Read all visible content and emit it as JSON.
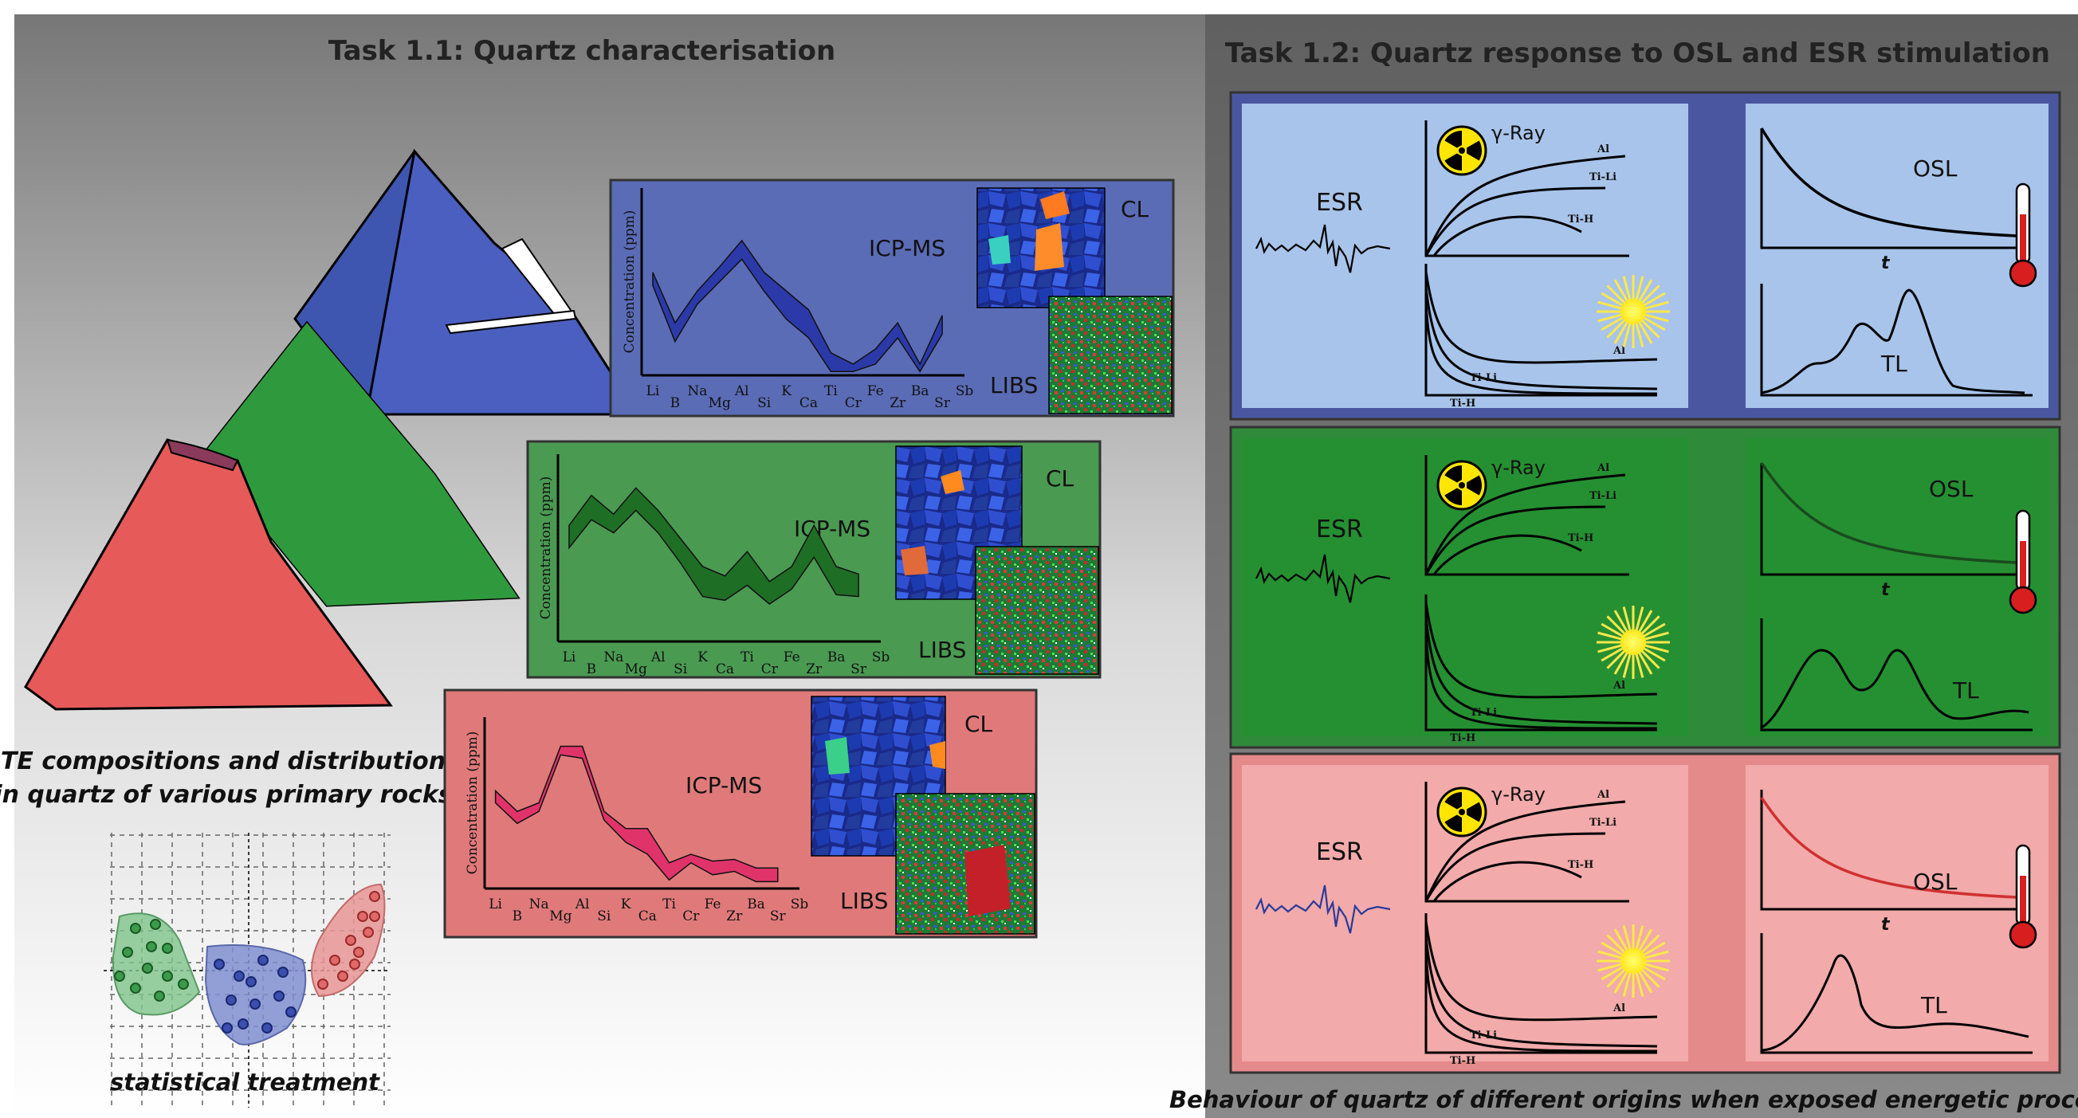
{
  "left": {
    "heading": "Task 1.1: Quartz characterisation",
    "caption_line1": "TE compositions and distribution",
    "caption_line2": "in quartz of various primary rocks",
    "stats_caption": "statistical treatment",
    "panels": [
      {
        "id": "blue",
        "y_axis": "Concentration (ppm)",
        "method": "ICP-MS",
        "cl": "CL",
        "libs": "LIBS",
        "color": "#5b6cb6",
        "band": "#2b3aa8"
      },
      {
        "id": "green",
        "y_axis": "Concentration (ppm)",
        "method": "ICP-MS",
        "cl": "CL",
        "libs": "LIBS",
        "color": "#4a9a52",
        "band": "#1f6e25"
      },
      {
        "id": "red",
        "y_axis": "Concentration (ppm)",
        "method": "ICP-MS",
        "cl": "CL",
        "libs": "LIBS",
        "color": "#e07a7a",
        "band": "#e0336a"
      }
    ],
    "elements_top": [
      "Li",
      "Na",
      "Al",
      "K",
      "Ti",
      "Fe",
      "Ba",
      "Sb"
    ],
    "elements_bottom": [
      "B",
      "Mg",
      "Si",
      "Ca",
      "Cr",
      "Zr",
      "Sr"
    ]
  },
  "right": {
    "heading": "Task 1.2: Quartz response to OSL and ESR stimulation",
    "caption": "Behaviour of quartz of different origins when exposed energetic process",
    "esr": "ESR",
    "gamma": "γ-Ray",
    "osl": "OSL",
    "tl": "TL",
    "t": "t",
    "al": "Al",
    "tili": "Ti-Li",
    "tih": "Ti-H"
  },
  "colors": {
    "left_bg_top": "#7a7a7a",
    "right_bg": "#6f6f6f",
    "blue_frame": "#4a57a0",
    "blue_inner": "#a8c4ea",
    "green_frame": "#2f8a3a",
    "red_frame": "#e58a8a",
    "red_inner": "#f2aaaa"
  }
}
